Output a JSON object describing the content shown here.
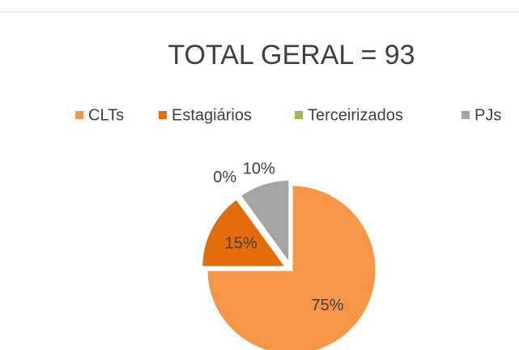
{
  "chart_data": {
    "type": "pie",
    "title": "TOTAL GERAL = 93",
    "series": [
      {
        "name": "CLTs",
        "color": "#f79646",
        "values": [
          75
        ],
        "value_labels": [
          "75%"
        ]
      },
      {
        "name": "Estagiários",
        "color": "#e46c0a",
        "values": [
          15
        ],
        "value_labels": [
          "15%"
        ]
      },
      {
        "name": "Terceirizados",
        "color": "#9bbb59",
        "values": [
          0
        ],
        "value_labels": [
          "0%"
        ]
      },
      {
        "name": "PJs",
        "color": "#a5a5a5",
        "values": [
          10
        ],
        "value_labels": [
          "10%"
        ]
      }
    ],
    "legend": "top"
  }
}
